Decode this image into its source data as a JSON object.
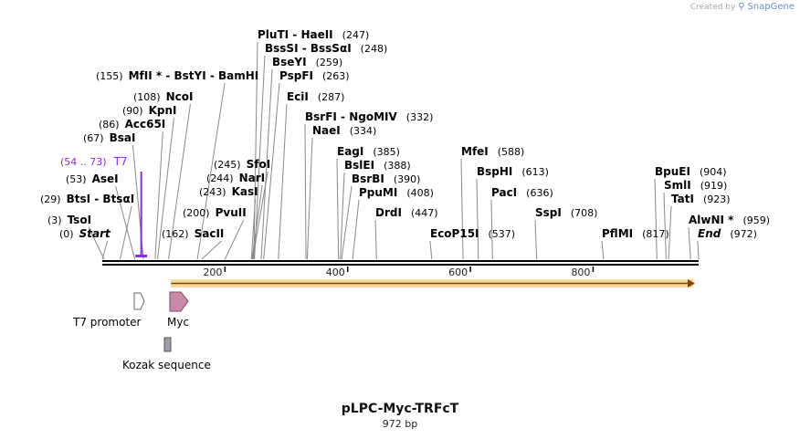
{
  "credit": {
    "prefix": "Created by",
    "brand": "SnapGene"
  },
  "plasmid": {
    "name": "pLPC-Myc-TRFcT",
    "length_label": "972 bp",
    "length": 972
  },
  "enzymes": [
    {
      "pre": "(0)",
      "name": "Start",
      "post": "",
      "pos": 0,
      "kind": "start"
    },
    {
      "pre": "(3)",
      "name": "TsoI",
      "post": "",
      "pos": 3
    },
    {
      "pre": "(29)",
      "name": "BtsI - BtsαI",
      "post": "",
      "pos": 29
    },
    {
      "pre": "(53)",
      "name": "AseI",
      "post": "",
      "pos": 53
    },
    {
      "pre": "(67)",
      "name": "BsaI",
      "post": "",
      "pos": 67
    },
    {
      "pre": "(86)",
      "name": "Acc65I",
      "post": "",
      "pos": 86
    },
    {
      "pre": "(90)",
      "name": "KpnI",
      "post": "",
      "pos": 90
    },
    {
      "pre": "(108)",
      "name": "NcoI",
      "post": "",
      "pos": 108
    },
    {
      "pre": "(155)",
      "name": "MfII * - BstYI - BamHI",
      "post": "",
      "pos": 155
    },
    {
      "pre": "(162)",
      "name": "SacII",
      "post": "",
      "pos": 162
    },
    {
      "pre": "(200)",
      "name": "PvuII",
      "post": "",
      "pos": 200
    },
    {
      "pre": "(243)",
      "name": "KasI",
      "post": "",
      "pos": 243
    },
    {
      "pre": "(244)",
      "name": "NarI",
      "post": "",
      "pos": 244
    },
    {
      "pre": "(245)",
      "name": "SfoI",
      "post": "",
      "pos": 245
    },
    {
      "pre": "",
      "name": "PluTI - HaeII",
      "post": "(247)",
      "pos": 247
    },
    {
      "pre": "",
      "name": "BssSI - BssSαI",
      "post": "(248)",
      "pos": 248
    },
    {
      "pre": "",
      "name": "BseYI",
      "post": "(259)",
      "pos": 259
    },
    {
      "pre": "",
      "name": "PspFI",
      "post": "(263)",
      "pos": 263
    },
    {
      "pre": "",
      "name": "EciI",
      "post": "(287)",
      "pos": 287
    },
    {
      "pre": "",
      "name": "BsrFI - NgoMIV",
      "post": "(332)",
      "pos": 332
    },
    {
      "pre": "",
      "name": "NaeI",
      "post": "(334)",
      "pos": 334
    },
    {
      "pre": "",
      "name": "EagI",
      "post": "(385)",
      "pos": 385
    },
    {
      "pre": "",
      "name": "BslEI",
      "post": "(388)",
      "pos": 388
    },
    {
      "pre": "",
      "name": "BsrBI",
      "post": "(390)",
      "pos": 390
    },
    {
      "pre": "",
      "name": "PpuMI",
      "post": "(408)",
      "pos": 408
    },
    {
      "pre": "",
      "name": "DrdI",
      "post": "(447)",
      "pos": 447
    },
    {
      "pre": "",
      "name": "EcoP15I",
      "post": "(537)",
      "pos": 537
    },
    {
      "pre": "",
      "name": "MfeI",
      "post": "(588)",
      "pos": 588
    },
    {
      "pre": "",
      "name": "BspHI",
      "post": "(613)",
      "pos": 613
    },
    {
      "pre": "",
      "name": "PacI",
      "post": "(636)",
      "pos": 636
    },
    {
      "pre": "",
      "name": "SspI",
      "post": "(708)",
      "pos": 708
    },
    {
      "pre": "",
      "name": "PflMI",
      "post": "(817)",
      "pos": 817
    },
    {
      "pre": "",
      "name": "BpuEI",
      "post": "(904)",
      "pos": 904
    },
    {
      "pre": "",
      "name": "SmlI",
      "post": "(919)",
      "pos": 919
    },
    {
      "pre": "",
      "name": "TatI",
      "post": "(923)",
      "pos": 923
    },
    {
      "pre": "",
      "name": "AlwNI *",
      "post": "(959)",
      "pos": 959
    },
    {
      "pre": "",
      "name": "End",
      "post": "(972)",
      "pos": 972,
      "kind": "end"
    }
  ],
  "primer": {
    "range": "(54 .. 73)",
    "name": "T7",
    "start": 54,
    "end": 73,
    "color": "#8a2be2"
  },
  "axis_ticks": [
    "200",
    "400",
    "600",
    "800"
  ],
  "axis_values": [
    200,
    400,
    600,
    800
  ],
  "features": [
    {
      "name": "T7 promoter",
      "start": 54,
      "end": 73,
      "color": "#ffffff"
    },
    {
      "name": "Myc",
      "start": 112,
      "end": 143,
      "color": "#c98aa8"
    },
    {
      "name": "Kozak sequence",
      "start": 101,
      "end": 110,
      "color": "#9aa0a6"
    }
  ],
  "orf": {
    "start": 112,
    "end": 972,
    "color": "#f5a623"
  }
}
